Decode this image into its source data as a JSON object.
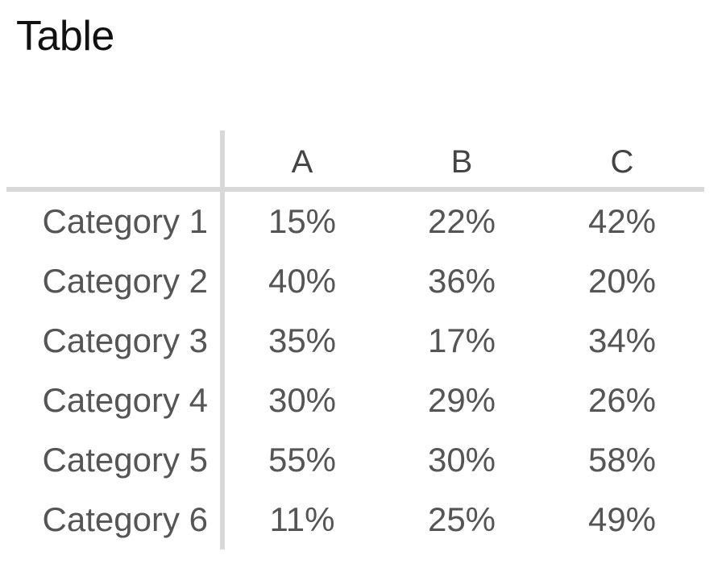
{
  "title": "Table",
  "chart_data": {
    "type": "table",
    "title": "Table",
    "columns": [
      "A",
      "B",
      "C"
    ],
    "rows": [
      {
        "label": "Category 1",
        "values": [
          "15%",
          "22%",
          "42%"
        ]
      },
      {
        "label": "Category 2",
        "values": [
          "40%",
          "36%",
          "20%"
        ]
      },
      {
        "label": "Category 3",
        "values": [
          "35%",
          "17%",
          "34%"
        ]
      },
      {
        "label": "Category 4",
        "values": [
          "30%",
          "29%",
          "26%"
        ]
      },
      {
        "label": "Category 5",
        "values": [
          "55%",
          "30%",
          "58%"
        ]
      },
      {
        "label": "Category 6",
        "values": [
          "11%",
          "25%",
          "49%"
        ]
      }
    ]
  }
}
